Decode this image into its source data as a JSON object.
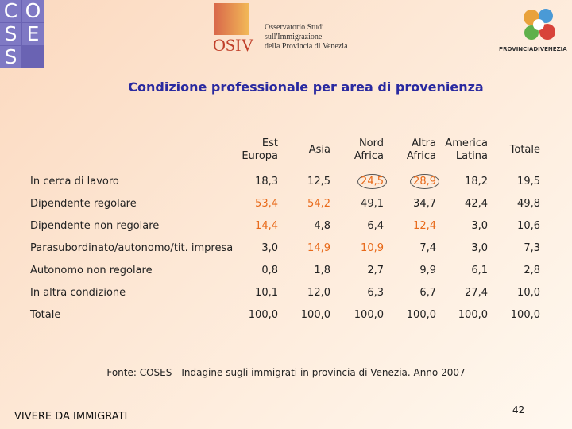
{
  "header": {
    "logo_left": [
      [
        "C",
        "O"
      ],
      [
        "S",
        "E"
      ],
      [
        "S"
      ]
    ],
    "osiv": {
      "mark": "OSIV",
      "lines": [
        "Osservatorio Studi",
        "sull'Immigrazione",
        "della Provincia di Venezia"
      ]
    },
    "logo_right": "PROVINCIADIVENEZIA"
  },
  "title": "Condizione professionale per area di provenienza",
  "table": {
    "columns": [
      [
        "Est",
        "Europa"
      ],
      [
        "Asia"
      ],
      [
        "Nord",
        "Africa"
      ],
      [
        "Altra",
        "Africa"
      ],
      [
        "America",
        "Latina"
      ],
      [
        "Totale"
      ]
    ],
    "rows": [
      {
        "label": "In cerca di lavoro",
        "cells": [
          "18,3",
          "12,5",
          "24,5",
          "28,9",
          "18,2",
          "19,5"
        ]
      },
      {
        "label": "Dipendente regolare",
        "cells": [
          "53,4",
          "54,2",
          "49,1",
          "34,7",
          "42,4",
          "49,8"
        ]
      },
      {
        "label": "Dipendente non regolare",
        "cells": [
          "14,4",
          "4,8",
          "6,4",
          "12,4",
          "3,0",
          "10,6"
        ]
      },
      {
        "label": "Parasubordinato/autonomo/tit. impresa",
        "cells": [
          "3,0",
          "14,9",
          "10,9",
          "7,4",
          "3,0",
          "7,3"
        ]
      },
      {
        "label": "Autonomo non regolare",
        "cells": [
          "0,8",
          "1,8",
          "2,7",
          "9,9",
          "6,1",
          "2,8"
        ]
      },
      {
        "label": "In altra condizione",
        "cells": [
          "10,1",
          "12,0",
          "6,3",
          "6,7",
          "27,4",
          "10,0"
        ]
      },
      {
        "label": "Totale",
        "cells": [
          "100,0",
          "100,0",
          "100,0",
          "100,0",
          "100,0",
          "100,0"
        ]
      }
    ]
  },
  "source": "Fonte: COSES - Indagine sugli immigrati in provincia di Venezia. Anno 2007",
  "footer": "VIVERE DA IMMIGRATI",
  "page_number": "42"
}
